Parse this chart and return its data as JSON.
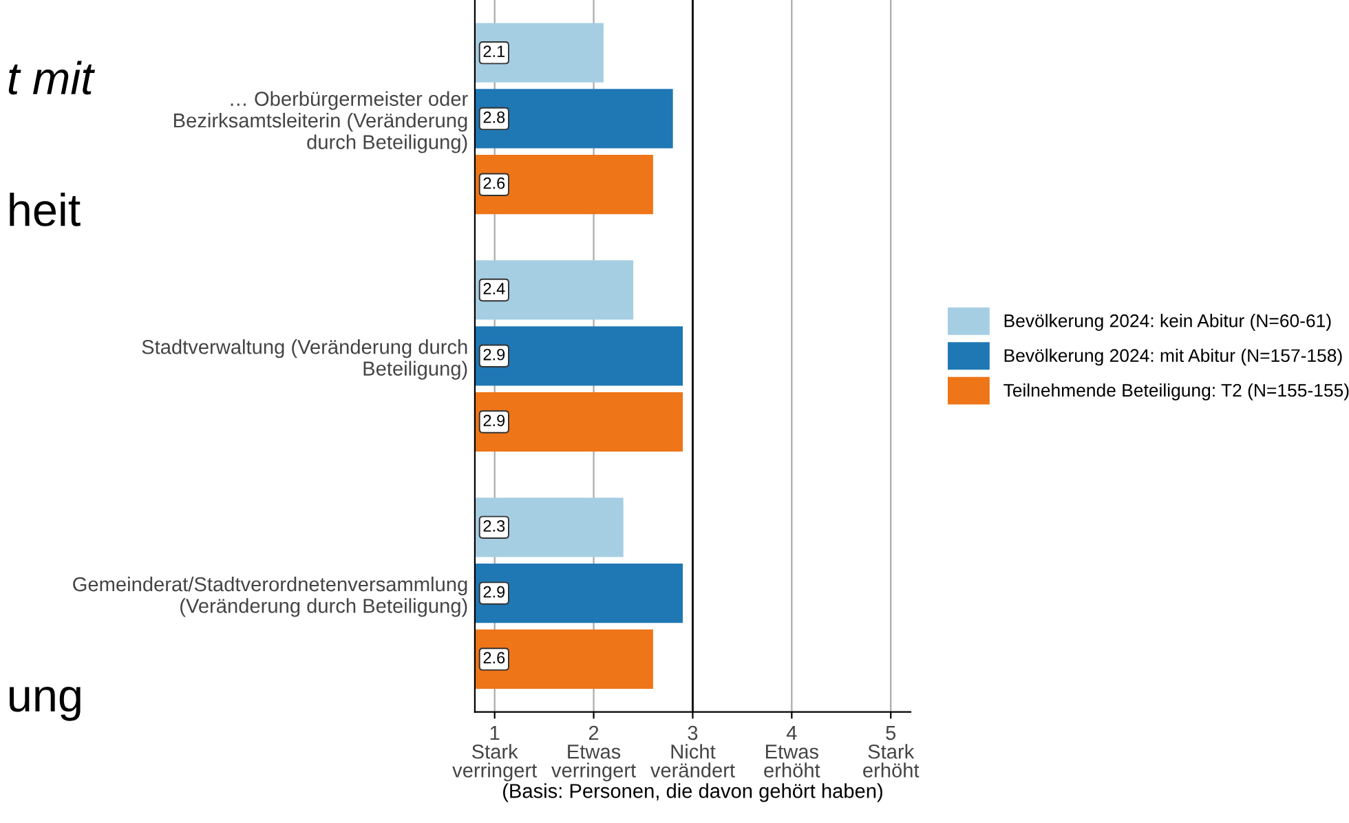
{
  "chart_data": {
    "type": "bar",
    "orientation": "horizontal",
    "categories": [
      "… Oberbürgermeister oder\nBezirksamtsleiterin (Veränderung\ndurch Beteiligung)",
      "Stadtverwaltung (Veränderung durch\nBeteiligung)",
      "Gemeinderat/Stadtverordnetenversammlung\n(Veränderung durch Beteiligung)"
    ],
    "series": [
      {
        "name": "Bevölkerung 2024: kein Abitur (N=60-61)",
        "color": "#a6cee3",
        "values": [
          2.1,
          2.4,
          2.3
        ]
      },
      {
        "name": "Bevölkerung 2024: mit Abitur (N=157-158)",
        "color": "#1f78b4",
        "values": [
          2.8,
          2.9,
          2.9
        ]
      },
      {
        "name": "Teilnehmende Beteiligung: T2 (N=155-155)",
        "color": "#ee7518",
        "values": [
          2.6,
          2.9,
          2.6
        ]
      }
    ],
    "xlim": [
      0.8,
      5.2
    ],
    "xticks": [
      {
        "value": 1,
        "label": "1\nStark\nverringert"
      },
      {
        "value": 2,
        "label": "2\nEtwas\nverringert"
      },
      {
        "value": 3,
        "label": "3\nNicht\nverändert"
      },
      {
        "value": 4,
        "label": "4\nEtwas\nerhöht"
      },
      {
        "value": 5,
        "label": "5\nStark\nerhöht"
      }
    ],
    "xlabel": "(Basis: Personen, die davon gehört haben)",
    "ref_lines": [
      {
        "axis": "x",
        "value": 3,
        "color": "#000000"
      }
    ],
    "grid": "x",
    "legend": "right",
    "data_labels": true,
    "annotations": [
      "t mit",
      "heit",
      "ung"
    ]
  }
}
